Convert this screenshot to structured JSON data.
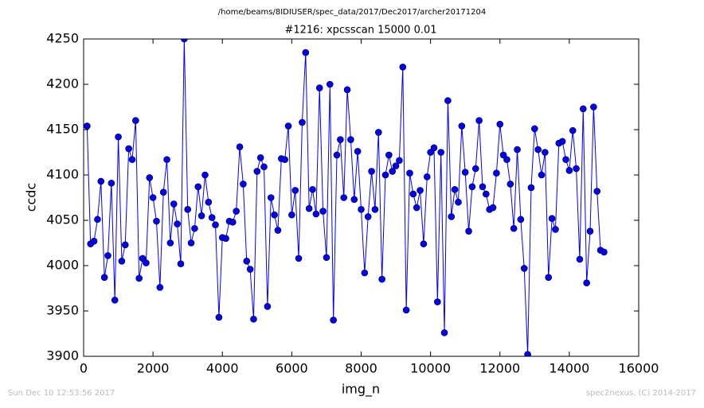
{
  "chart_data": {
    "type": "line",
    "header": "/home/beams/8IDIUSER/spec_data/2017/Dec2017/archer20171204",
    "title": "#1216: xpcsscan 15000 0.01",
    "x_label": "img_n",
    "y_label": "ccdc",
    "footer_left": "Sun Dec 10 12:53:56 2017",
    "footer_right": "spec2nexus, (C) 2014-2017",
    "xlim": [
      0,
      16000
    ],
    "xticks": [
      0,
      2000,
      4000,
      6000,
      8000,
      10000,
      12000,
      14000,
      16000
    ],
    "ylim": [
      3900,
      4250
    ],
    "yticks": [
      3900,
      3950,
      4000,
      4050,
      4100,
      4150,
      4200,
      4250
    ],
    "x": [
      100,
      200,
      300,
      400,
      500,
      600,
      700,
      800,
      900,
      1000,
      1100,
      1200,
      1300,
      1400,
      1500,
      1600,
      1700,
      1800,
      1900,
      2000,
      2100,
      2200,
      2300,
      2400,
      2500,
      2600,
      2700,
      2800,
      2900,
      3000,
      3100,
      3200,
      3300,
      3400,
      3500,
      3600,
      3700,
      3800,
      3900,
      4000,
      4100,
      4200,
      4300,
      4400,
      4500,
      4600,
      4700,
      4800,
      4900,
      5000,
      5100,
      5200,
      5300,
      5400,
      5500,
      5600,
      5700,
      5800,
      5900,
      6000,
      6100,
      6200,
      6300,
      6400,
      6500,
      6600,
      6700,
      6800,
      6900,
      7000,
      7100,
      7200,
      7300,
      7400,
      7500,
      7600,
      7700,
      7800,
      7900,
      8000,
      8100,
      8200,
      8300,
      8400,
      8500,
      8600,
      8700,
      8800,
      8900,
      9000,
      9100,
      9200,
      9300,
      9400,
      9500,
      9600,
      9700,
      9800,
      9900,
      10000,
      10100,
      10200,
      10300,
      10400,
      10500,
      10600,
      10700,
      10800,
      10900,
      11000,
      11100,
      11200,
      11300,
      11400,
      11500,
      11600,
      11700,
      11800,
      11900,
      12000,
      12100,
      12200,
      12300,
      12400,
      12500,
      12600,
      12700,
      12800,
      12900,
      13000,
      13100,
      13200,
      13300,
      13400,
      13500,
      13600,
      13700,
      13800,
      13900,
      14000,
      14100,
      14200,
      14300,
      14400,
      14500,
      14600,
      14700,
      14800,
      14900,
      15000
    ],
    "series": [
      {
        "name": "ccdc",
        "color": "#0000ff",
        "values": [
          4154,
          4024,
          4027,
          4051,
          4093,
          3987,
          4011,
          4091,
          3962,
          4142,
          4005,
          4023,
          4129,
          4117,
          4160,
          3986,
          4008,
          4003,
          4097,
          4075,
          4049,
          3976,
          4081,
          4117,
          4025,
          4068,
          4046,
          4002,
          4250,
          4062,
          4025,
          4041,
          4087,
          4055,
          4100,
          4070,
          4053,
          4045,
          3943,
          4031,
          4030,
          4049,
          4048,
          4060,
          4131,
          4090,
          4005,
          3996,
          3941,
          4104,
          4119,
          4109,
          3955,
          4075,
          4056,
          4039,
          4118,
          4117,
          4154,
          4056,
          4083,
          4008,
          4158,
          4235,
          4063,
          4084,
          4057,
          4196,
          4060,
          4009,
          4200,
          3940,
          4122,
          4139,
          4075,
          4194,
          4139,
          4073,
          4126,
          4062,
          3992,
          4054,
          4104,
          4062,
          4147,
          3985,
          4100,
          4122,
          4104,
          4110,
          4116,
          4219,
          3951,
          4102,
          4079,
          4064,
          4083,
          4024,
          4098,
          4125,
          4130,
          3960,
          4125,
          3926,
          4182,
          4054,
          4084,
          4070,
          4154,
          4103,
          4038,
          4087,
          4107,
          4160,
          4087,
          4079,
          4062,
          4064,
          4102,
          4156,
          4122,
          4117,
          4090,
          4041,
          4128,
          4051,
          3997,
          3902,
          4086,
          4151,
          4128,
          4100,
          4125,
          3987,
          4052,
          4040,
          4135,
          4137,
          4117,
          4105,
          4149,
          4107,
          4007,
          4173,
          3981,
          4038,
          4175,
          4082,
          4017,
          4015
        ]
      }
    ]
  }
}
